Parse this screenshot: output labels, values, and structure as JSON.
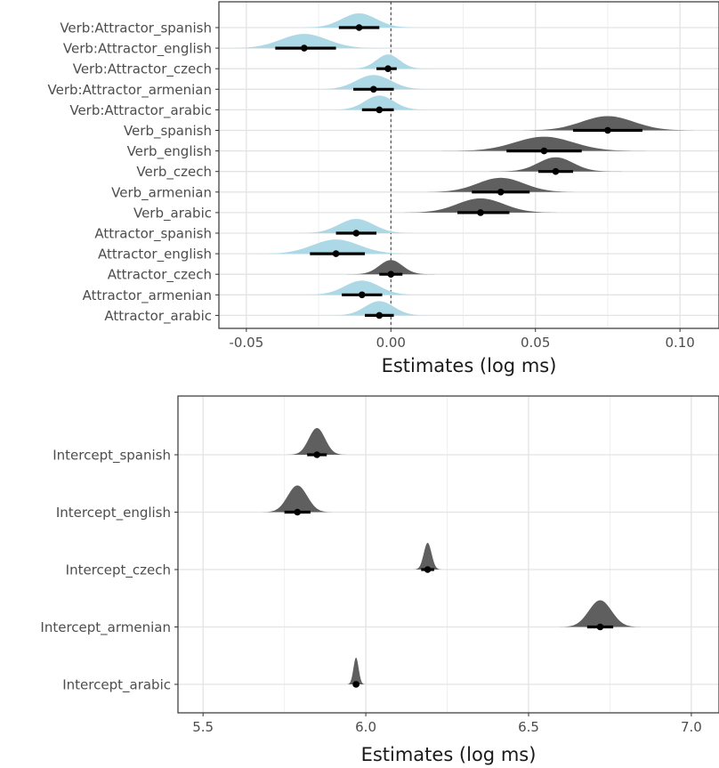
{
  "chart_data": [
    {
      "type": "ridgeline-posterior",
      "xlabel": "Estimates (log ms)",
      "xticks": [
        -0.05,
        0.0,
        0.05,
        0.1
      ],
      "xtick_labels": [
        "-0.05",
        "0.00",
        "0.05",
        "0.10"
      ],
      "zero_line": true,
      "grid": true,
      "colors": {
        "positive": "#5f5f5f",
        "negative": "#add8e6",
        "point": "#000000"
      },
      "categories": [
        "Verb:Attractor_spanish",
        "Verb:Attractor_english",
        "Verb:Attractor_czech",
        "Verb:Attractor_armenian",
        "Verb:Attractor_arabic",
        "Verb_spanish",
        "Verb_english",
        "Verb_czech",
        "Verb_armenian",
        "Verb_arabic",
        "Attractor_spanish",
        "Attractor_english",
        "Attractor_czech",
        "Attractor_armenian",
        "Attractor_arabic"
      ],
      "estimates": [
        -0.011,
        -0.03,
        -0.001,
        -0.006,
        -0.004,
        0.075,
        0.053,
        0.057,
        0.038,
        0.031,
        -0.012,
        -0.019,
        0.0,
        -0.01,
        -0.004
      ],
      "interval_low": [
        -0.018,
        -0.04,
        -0.005,
        -0.013,
        -0.01,
        0.063,
        0.04,
        0.051,
        0.028,
        0.023,
        -0.019,
        -0.028,
        -0.004,
        -0.017,
        -0.009
      ],
      "interval_high": [
        -0.004,
        -0.019,
        0.002,
        0.001,
        0.001,
        0.087,
        0.066,
        0.063,
        0.048,
        0.041,
        -0.005,
        -0.009,
        0.004,
        -0.003,
        0.001
      ],
      "spread": [
        0.006,
        0.008,
        0.004,
        0.006,
        0.005,
        0.009,
        0.01,
        0.006,
        0.008,
        0.008,
        0.006,
        0.008,
        0.004,
        0.006,
        0.005
      ]
    },
    {
      "type": "ridgeline-posterior",
      "xlabel": "Estimates (log ms)",
      "xticks": [
        5.5,
        6.0,
        6.5,
        7.0
      ],
      "xtick_labels": [
        "5.5",
        "6.0",
        "6.5",
        "7.0"
      ],
      "grid": true,
      "colors": {
        "fill": "#5f5f5f",
        "point": "#000000"
      },
      "categories": [
        "Intercept_spanish",
        "Intercept_english",
        "Intercept_czech",
        "Intercept_armenian",
        "Intercept_arabic"
      ],
      "estimates": [
        5.85,
        5.79,
        6.19,
        6.72,
        5.97
      ],
      "interval_low": [
        5.82,
        5.75,
        6.17,
        6.68,
        5.96
      ],
      "interval_high": [
        5.88,
        5.83,
        6.21,
        6.76,
        5.98
      ],
      "spread": [
        0.025,
        0.03,
        0.012,
        0.035,
        0.008
      ]
    }
  ]
}
